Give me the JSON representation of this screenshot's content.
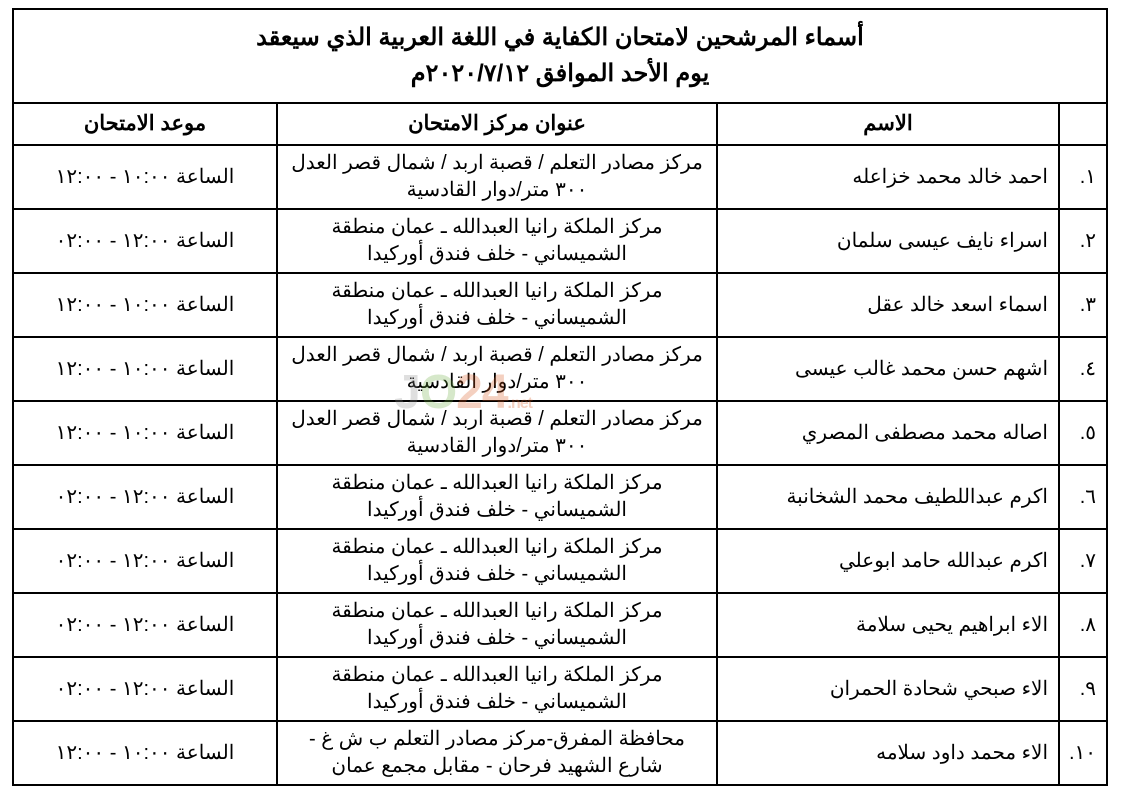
{
  "title_l1": "أسماء المرشحين لامتحان الكفاية في اللغة العربية الذي سيعقد",
  "title_l2": "يوم الأحد الموافق ٢٠٢٠/٧/١٢م",
  "columns": {
    "idx": "",
    "name": "الاسم",
    "center": "عنوان مركز الامتحان",
    "time": "موعد الامتحان"
  },
  "watermark": {
    "j": "J",
    "o": "O",
    "n24": "24",
    "net": ".net"
  },
  "rows": [
    {
      "idx": "١.",
      "name": "احمد خالد محمد خزاعله",
      "center": "مركز مصادر التعلم / قصبة  اربد /  شمال قصر العدل ٣٠٠ متر/دوار القادسية",
      "time": "الساعة ١٠:٠٠ - ١٢:٠٠"
    },
    {
      "idx": "٢.",
      "name": "اسراء نايف عيسى سلمان",
      "center": "مركز الملكة رانيا العبدالله ـ عمان منطقة الشميساني - خلف فندق أوركيدا",
      "time": "الساعة ١٢:٠٠ - ٠٢:٠٠"
    },
    {
      "idx": "٣.",
      "name": "اسماء اسعد خالد عقل",
      "center": "مركز الملكة رانيا العبدالله ـ عمان منطقة الشميساني - خلف فندق أوركيدا",
      "time": "الساعة ١٠:٠٠ - ١٢:٠٠"
    },
    {
      "idx": "٤.",
      "name": "اشهم حسن محمد غالب عيسى",
      "center": "مركز مصادر التعلم / قصبة  اربد /  شمال قصر العدل ٣٠٠ متر/دوار القادسية",
      "time": "الساعة ١٠:٠٠ - ١٢:٠٠"
    },
    {
      "idx": "٥.",
      "name": "اصاله محمد مصطفى المصري",
      "center": "مركز مصادر التعلم / قصبة  اربد /  شمال قصر العدل ٣٠٠ متر/دوار القادسية",
      "time": "الساعة ١٠:٠٠ - ١٢:٠٠"
    },
    {
      "idx": "٦.",
      "name": "اكرم عبداللطيف محمد الشخانبة",
      "center": "مركز الملكة رانيا العبدالله ـ عمان منطقة الشميساني - خلف فندق أوركيدا",
      "time": "الساعة ١٢:٠٠ - ٠٢:٠٠"
    },
    {
      "idx": "٧.",
      "name": "اكرم عبدالله حامد ابوعلي",
      "center": "مركز الملكة رانيا العبدالله ـ عمان منطقة الشميساني - خلف فندق أوركيدا",
      "time": "الساعة ١٢:٠٠ - ٠٢:٠٠"
    },
    {
      "idx": "٨.",
      "name": "الاء ابراهيم يحيى سلامة",
      "center": "مركز الملكة رانيا العبدالله ـ عمان منطقة الشميساني - خلف فندق أوركيدا",
      "time": "الساعة ١٢:٠٠ - ٠٢:٠٠"
    },
    {
      "idx": "٩.",
      "name": "الاء صبحي شحادة الحمران",
      "center": "مركز الملكة رانيا العبدالله ـ عمان منطقة الشميساني - خلف فندق أوركيدا",
      "time": "الساعة ١٢:٠٠ - ٠٢:٠٠"
    },
    {
      "idx": "١٠.",
      "name": "الاء محمد داود سلامه",
      "center": "محافظة المفرق-مركز مصادر التعلم ب ش غ - شارع الشهيد فرحان - مقابل مجمع عمان",
      "time": "الساعة ١٠:٠٠ - ١٢:٠٠"
    }
  ]
}
